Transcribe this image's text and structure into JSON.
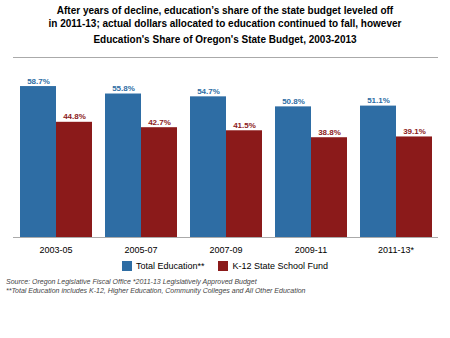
{
  "chart_data": {
    "type": "bar",
    "title": "After years of decline, education’s share of the state budget leveled off\nin 2011-13; actual dollars allocated to education continued to fall, however",
    "subtitle": "Education's Share of Oregon's State Budget, 2003-2013",
    "categories": [
      "2003-05",
      "2005-07",
      "2007-09",
      "2009-11",
      "2011-13*"
    ],
    "series": [
      {
        "name": "Total Education**",
        "color": "#2E6DA4",
        "values": [
          58.7,
          55.8,
          54.7,
          50.8,
          51.1
        ],
        "value_labels": [
          "58.7%",
          "55.8%",
          "54.7%",
          "50.8%",
          "51.1%"
        ]
      },
      {
        "name": "K-12 State School Fund",
        "color": "#8B1A1A",
        "values": [
          44.8,
          42.7,
          41.5,
          38.8,
          39.1
        ],
        "value_labels": [
          "44.8%",
          "42.7%",
          "41.5%",
          "38.8%",
          "39.1%"
        ]
      }
    ],
    "ylim": [
      0,
      70
    ],
    "grid": false,
    "data_labels": true,
    "tick_labels": "x",
    "legend": "bottom",
    "annotations": [
      "Source:  Oregon Legislative Fiscal Office  *2011-13 Legislatively Approved Budget",
      "**Total Education includes K-12, Higher Education, Community Colleges and All Other Education"
    ]
  }
}
